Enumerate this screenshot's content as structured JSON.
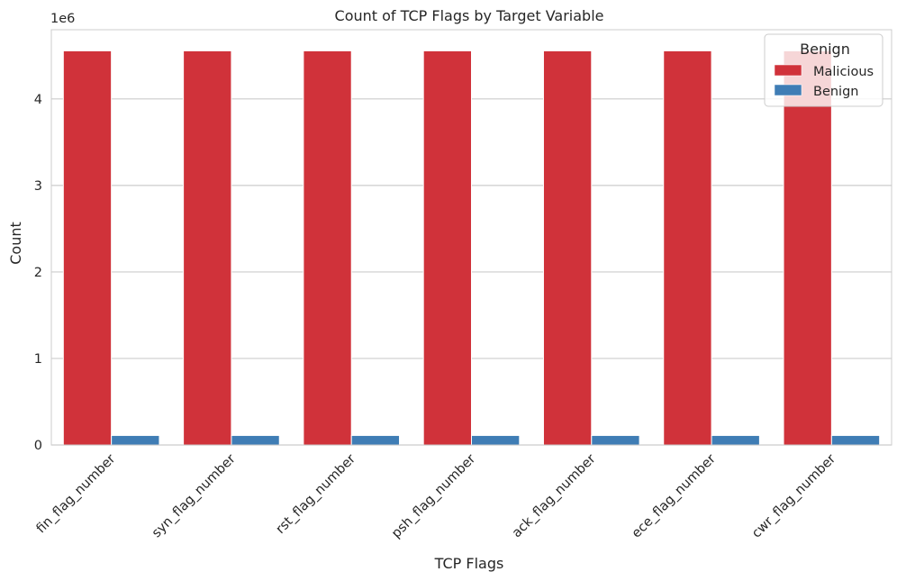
{
  "chart_data": {
    "type": "bar",
    "title": "Count of TCP Flags by Target Variable",
    "xlabel": "TCP Flags",
    "ylabel": "Count",
    "offset_label": "1e6",
    "categories": [
      "fin_flag_number",
      "syn_flag_number",
      "rst_flag_number",
      "psh_flag_number",
      "ack_flag_number",
      "ece_flag_number",
      "cwr_flag_number"
    ],
    "series": [
      {
        "name": "Malicious",
        "color": "#d0323a",
        "values": [
          4.556,
          4.556,
          4.556,
          4.556,
          4.556,
          4.556,
          4.556
        ]
      },
      {
        "name": "Benign",
        "color": "#3f7db5",
        "values": [
          0.11,
          0.11,
          0.11,
          0.11,
          0.11,
          0.11,
          0.11
        ]
      }
    ],
    "yticks": [
      0,
      1,
      2,
      3,
      4
    ],
    "ylim": [
      0,
      4.8
    ],
    "grid": true,
    "legend": {
      "title": "Benign",
      "position": "top-right"
    }
  }
}
